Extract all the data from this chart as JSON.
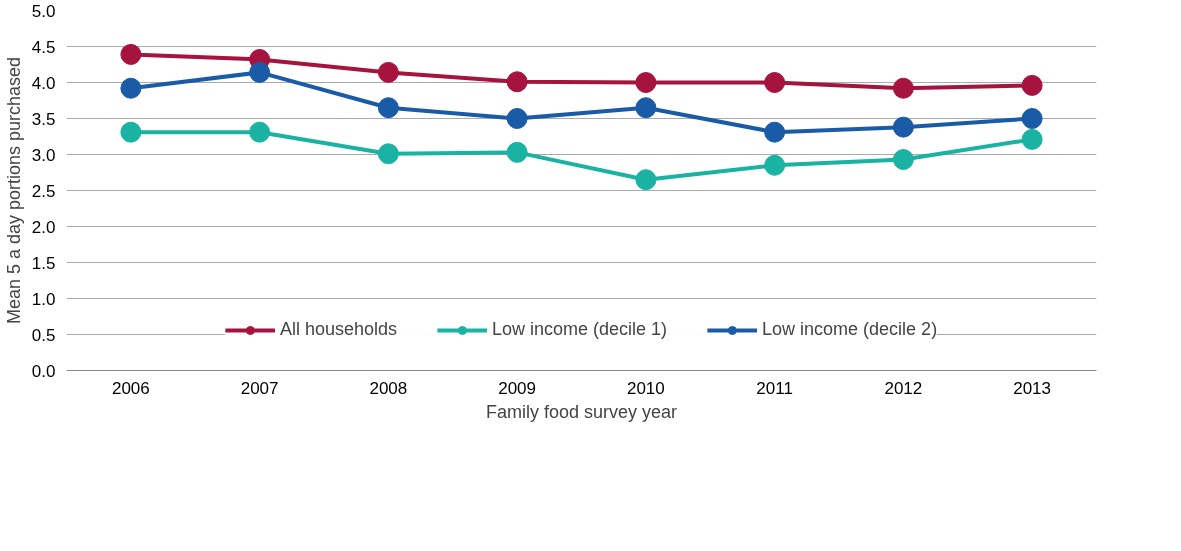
{
  "chart_data": {
    "type": "line",
    "xlabel": "Family food survey year",
    "ylabel": "Mean 5 a day portions purchased",
    "categories": [
      "2006",
      "2007",
      "2008",
      "2009",
      "2010",
      "2011",
      "2012",
      "2013"
    ],
    "series": [
      {
        "name": "All households",
        "color": "#a6133f",
        "values": [
          4.39,
          4.32,
          4.14,
          4.01,
          4.0,
          4.0,
          3.92,
          3.96
        ]
      },
      {
        "name": "Low income (decile 1)",
        "color": "#1ab3a3",
        "values": [
          3.31,
          3.31,
          3.01,
          3.03,
          2.65,
          2.85,
          2.93,
          3.21
        ]
      },
      {
        "name": "Low income (decile 2)",
        "color": "#1a5ba8",
        "values": [
          3.92,
          4.14,
          3.65,
          3.5,
          3.65,
          3.31,
          3.38,
          3.5
        ]
      }
    ],
    "ylim": [
      0,
      5
    ],
    "yticks": [
      {
        "value": 0,
        "label": "0.0"
      },
      0.5,
      {
        "value": 1,
        "label": "1.0"
      },
      1.5,
      {
        "value": 2,
        "label": "2.0"
      },
      2.5,
      {
        "value": 3,
        "label": "3.0"
      },
      3.5,
      {
        "value": 4,
        "label": "4.0"
      },
      4.5,
      {
        "value": 5,
        "label": "5.0"
      }
    ],
    "grid": "y",
    "legend": "bottom",
    "marker": "circle",
    "line_style": "solid"
  }
}
